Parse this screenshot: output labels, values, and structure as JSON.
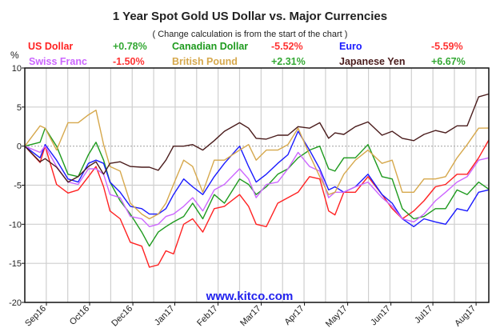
{
  "chart_data": {
    "type": "line",
    "title": "1 Year Spot Gold US Dollar vs. Major Currencies",
    "subtitle": "( Change calculation is from the start of the chart )",
    "ylabel": "%",
    "xlabel": "",
    "ylim": [
      -20,
      10
    ],
    "yticks": [
      "10",
      "5",
      "0",
      "-5",
      "-10",
      "-15",
      "-20"
    ],
    "ytick_values": [
      10,
      5,
      0,
      -5,
      -10,
      -15,
      -20
    ],
    "xlim": [
      0,
      365
    ],
    "xtick_labels": [
      "Sep16",
      "Oct16",
      "Dec16",
      "Jan17",
      "Feb17",
      "Mar17",
      "Apr17",
      "May17",
      "Jun17",
      "Jul17",
      "Aug17"
    ],
    "xtick_days": [
      17,
      51,
      85,
      118,
      152,
      186,
      220,
      254,
      288,
      321,
      355
    ],
    "grid": true,
    "watermark": "www.kitco.com",
    "x": [
      0,
      12,
      16,
      25,
      34,
      42,
      50,
      56,
      62,
      67,
      75,
      83,
      92,
      98,
      105,
      111,
      117,
      125,
      132,
      140,
      149,
      157,
      169,
      176,
      182,
      190,
      199,
      207,
      215,
      224,
      232,
      239,
      244,
      251,
      260,
      270,
      281,
      289,
      297,
      306,
      314,
      323,
      331,
      340,
      348,
      357,
      365
    ],
    "series": [
      {
        "name": "US Dollar",
        "change": "+0.78%",
        "color": "#ff2222",
        "change_color": "#33a833",
        "values": [
          0,
          -2.1,
          0,
          -4.9,
          -6,
          -5.6,
          -3.9,
          -2.6,
          -5.2,
          -8.3,
          -9.3,
          -12.3,
          -12.8,
          -15.5,
          -15.2,
          -13.4,
          -13.8,
          -10,
          -9.3,
          -11,
          -8,
          -7.7,
          -6.2,
          -7.7,
          -10,
          -10.3,
          -7.3,
          -6.6,
          -5.9,
          -3.9,
          -4.2,
          -8.3,
          -8.8,
          -5.9,
          -5.9,
          -3.9,
          -6.2,
          -8,
          -9.3,
          -8.3,
          -7,
          -5.2,
          -4.9,
          -3.6,
          -3.6,
          -1.5,
          0.78
        ]
      },
      {
        "name": "Canadian Dollar",
        "change": "-5.52%",
        "color": "#1e9a1e",
        "change_color": "#ff3333",
        "values": [
          0,
          0.5,
          2.3,
          0,
          -3.6,
          -3.9,
          -1.1,
          0.5,
          -1.8,
          -4.6,
          -7,
          -8.7,
          -11,
          -12.8,
          -11,
          -10.3,
          -9.7,
          -9,
          -7.3,
          -9.3,
          -6.2,
          -7.3,
          -4.2,
          -4.9,
          -6.2,
          -5.2,
          -3.6,
          -2.9,
          -1.5,
          -0.5,
          0,
          -2.9,
          -3.2,
          -1.5,
          -1.5,
          0.2,
          -3.9,
          -4.2,
          -8,
          -9.3,
          -9,
          -8,
          -8,
          -5.6,
          -6.2,
          -4.6,
          -5.52
        ]
      },
      {
        "name": "Euro",
        "change": "-5.59%",
        "color": "#1a1aff",
        "change_color": "#ff3333",
        "values": [
          0,
          -1.5,
          0.2,
          -1.8,
          -4.2,
          -4.6,
          -2.2,
          -1.8,
          -2.2,
          -4.6,
          -5.9,
          -7.7,
          -8,
          -8.7,
          -8.7,
          -8,
          -6.2,
          -4.2,
          -5.2,
          -6.2,
          -3.9,
          -2.2,
          0,
          -2.6,
          -4.6,
          -3.6,
          -2.2,
          -1.1,
          1.9,
          -0.5,
          -2.9,
          -5.6,
          -5.2,
          -5.9,
          -5.2,
          -3.6,
          -6.2,
          -7.3,
          -9.3,
          -10.3,
          -9.3,
          -9.7,
          -10,
          -8,
          -8.3,
          -5.9,
          -5.59
        ]
      },
      {
        "name": "Swiss Franc",
        "change": "-1.50%",
        "color": "#cc66ff",
        "change_color": "#ff3333",
        "values": [
          0,
          -0.8,
          0,
          -2.6,
          -4.6,
          -4.9,
          -2.9,
          -2.9,
          -3.6,
          -6.2,
          -6.6,
          -9,
          -9.3,
          -10.3,
          -10,
          -9,
          -8.7,
          -7.7,
          -6.6,
          -8.3,
          -5.6,
          -4.9,
          -2.9,
          -4.2,
          -6.6,
          -4.9,
          -4.6,
          -2.9,
          -0.8,
          -2.6,
          -3.2,
          -6.6,
          -5.9,
          -5.9,
          -5.2,
          -4.6,
          -6.6,
          -7.7,
          -9.3,
          -9.7,
          -8.7,
          -7,
          -5.9,
          -4.6,
          -3.9,
          -1.8,
          -1.5
        ]
      },
      {
        "name": "British Pound",
        "change": "+2.31%",
        "color": "#d6a84c",
        "change_color": "#33a833",
        "values": [
          0,
          2.6,
          2.3,
          -0.5,
          3,
          3,
          4,
          4.6,
          0.2,
          -2.6,
          -3.2,
          -7.3,
          -8.7,
          -9.3,
          -8.7,
          -7.3,
          -4.9,
          -1.8,
          -2.6,
          -5.9,
          -1.8,
          -1.8,
          -0.5,
          0.2,
          -1.8,
          -0.5,
          -0.5,
          0.2,
          2.3,
          -1.1,
          -3.9,
          -6.2,
          -5.9,
          -3.6,
          -1.8,
          -0.5,
          -2.2,
          -1.8,
          -5.9,
          -5.9,
          -4.2,
          -4.2,
          -3.9,
          -1.5,
          0.2,
          2.3,
          2.31
        ]
      },
      {
        "name": "Japanese Yen",
        "change": "+6.67%",
        "color": "#4a1c1c",
        "change_color": "#33a833",
        "values": [
          0,
          -2,
          -1.6,
          -2.7,
          -4.6,
          -3.9,
          -2.6,
          -2,
          -3.6,
          -2.2,
          -2,
          -2.6,
          -2.7,
          -2.7,
          -3.1,
          -1.8,
          0,
          0,
          0.2,
          -0.5,
          0.7,
          1.9,
          3,
          2.3,
          1,
          0.9,
          1.4,
          1.4,
          2.5,
          2.3,
          3,
          1,
          1.7,
          1.5,
          2.5,
          3.1,
          1.4,
          1.9,
          1,
          0.7,
          1.5,
          2,
          1.7,
          2.6,
          2.6,
          6.3,
          6.67
        ]
      }
    ]
  }
}
